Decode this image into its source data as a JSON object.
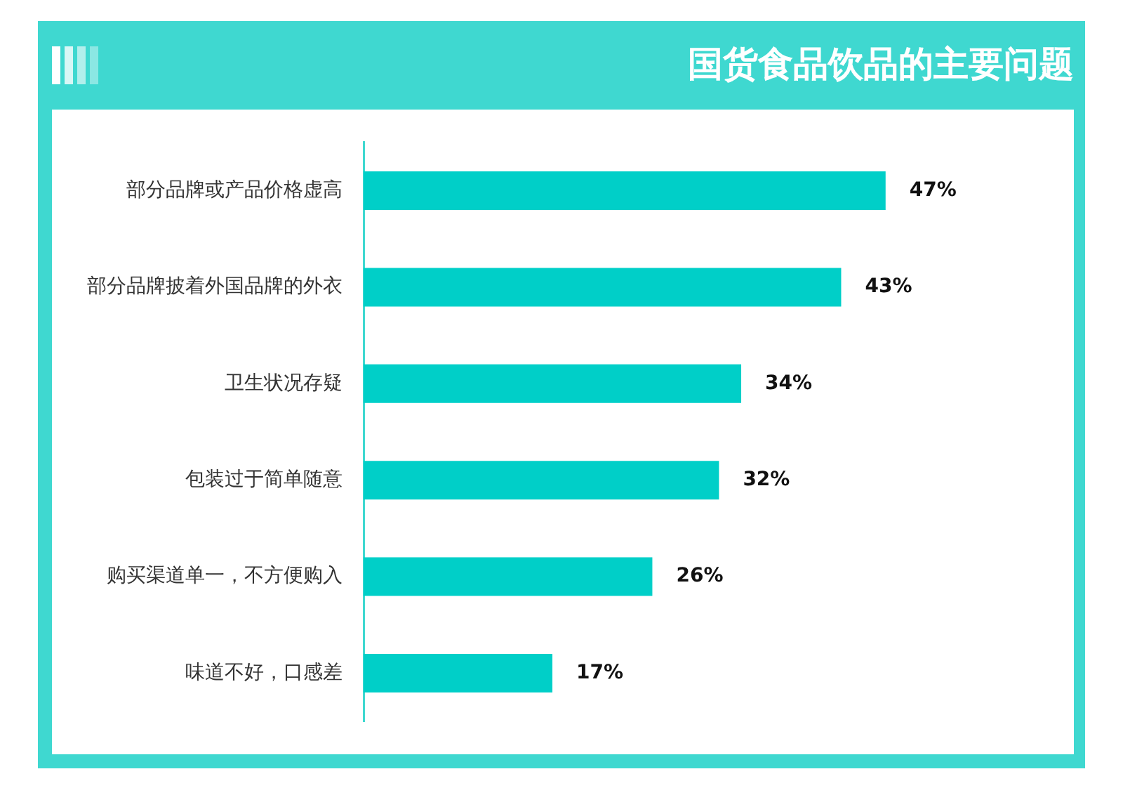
{
  "chart_data": {
    "type": "bar",
    "orientation": "horizontal",
    "title": "国货食品饮品的主要问题",
    "categories": [
      "部分品牌或产品价格虚高",
      "部分品牌披着外国品牌的外衣",
      "卫生状况存疑",
      "包装过于简单随意",
      "购买渠道单一，不方便购入",
      "味道不好，口感差"
    ],
    "values": [
      47,
      43,
      34,
      32,
      26,
      17
    ],
    "value_labels": [
      "47%",
      "43%",
      "34%",
      "32%",
      "26%",
      "17%"
    ],
    "color": "#00cfc8"
  }
}
